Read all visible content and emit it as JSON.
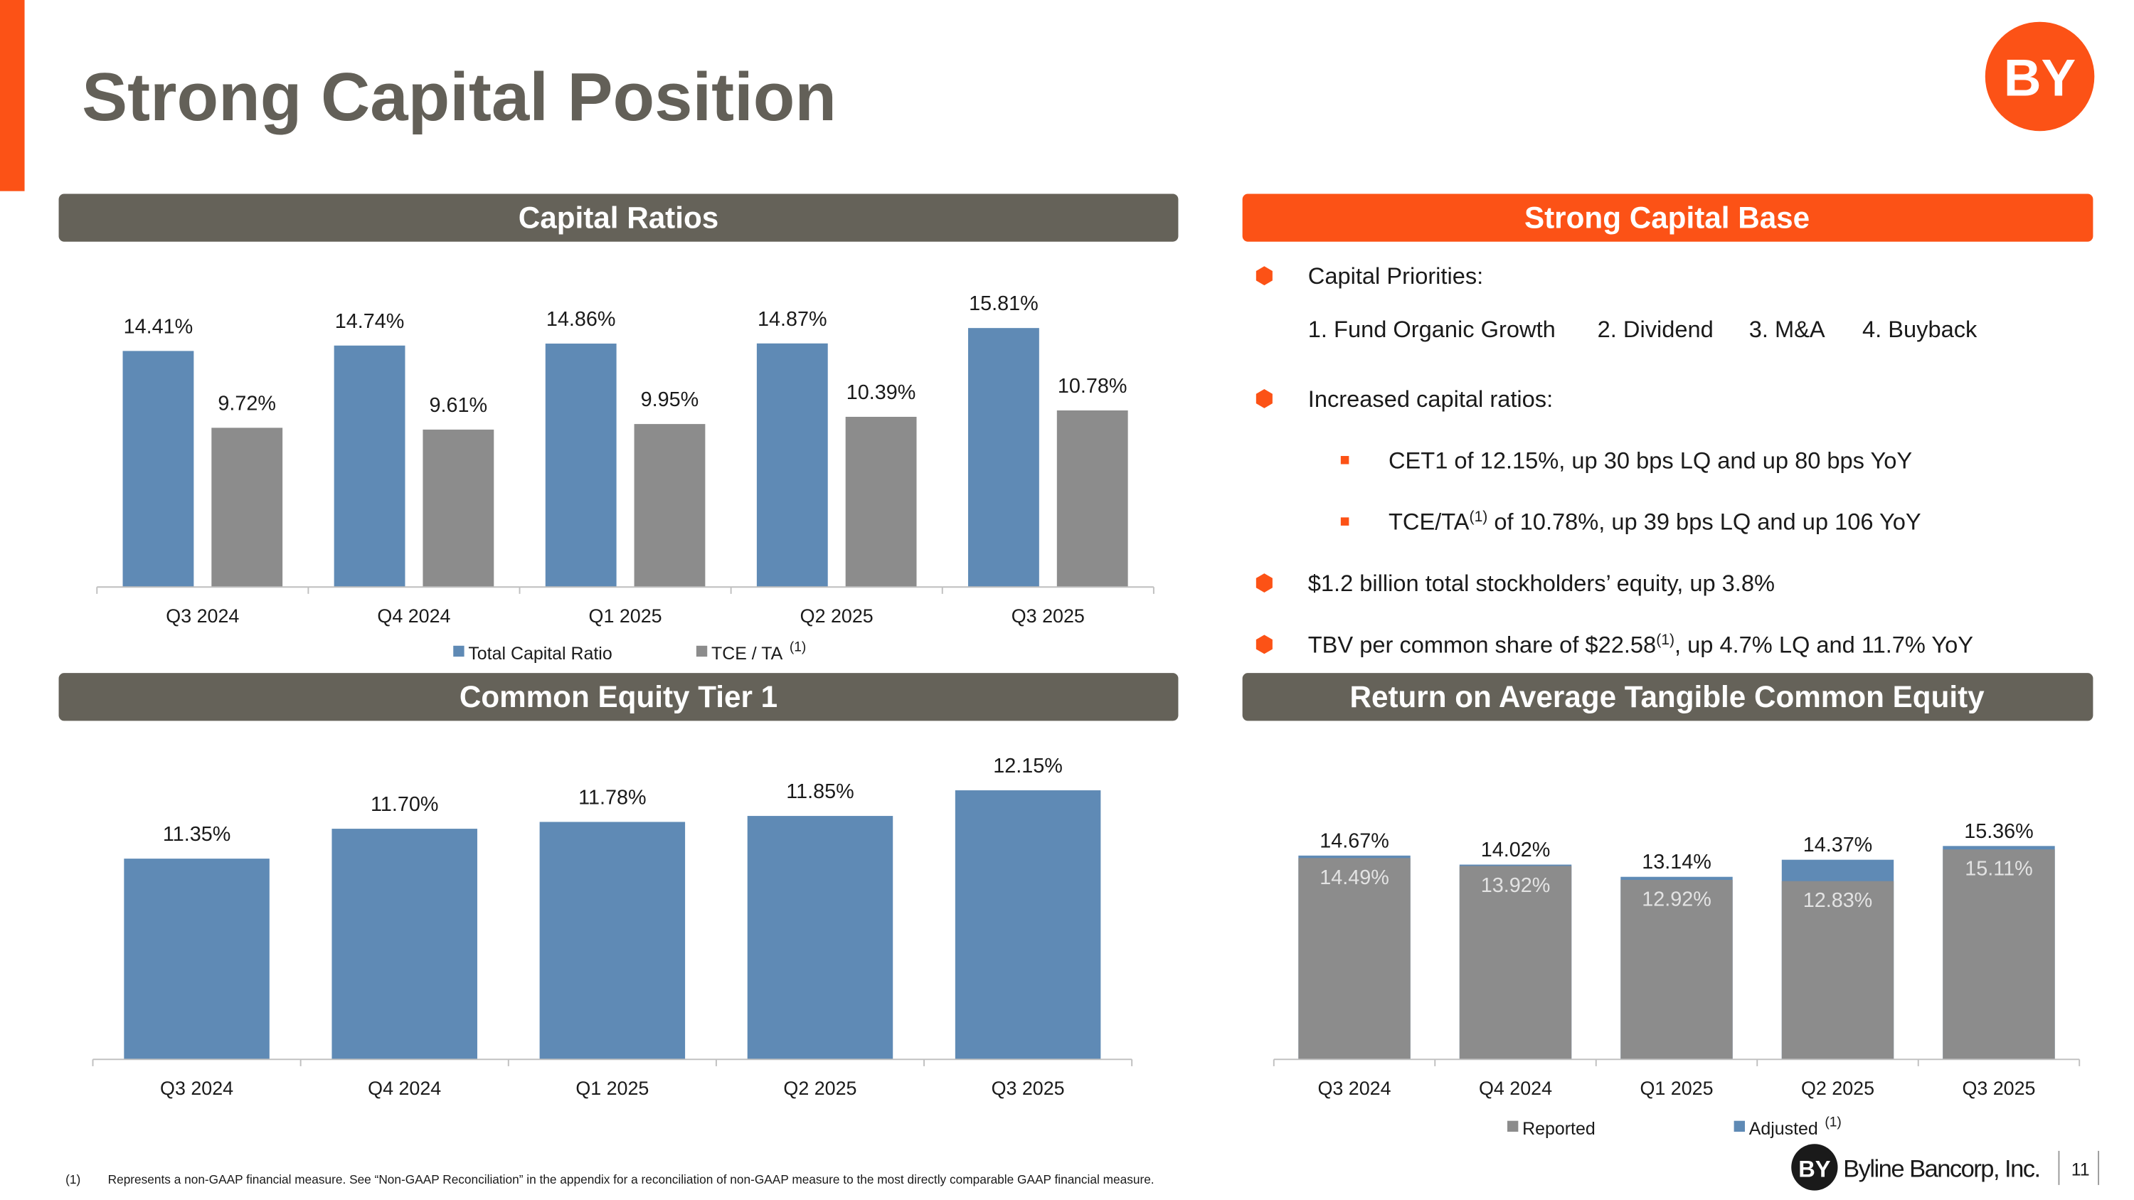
{
  "header": {
    "title": "Strong Capital Position",
    "logo": "BY"
  },
  "capital_base": {
    "title": "Strong Capital Base",
    "bullets": [
      {
        "text": "Capital Priorities:",
        "items": [
          "1. Fund Organic Growth",
          "2. Dividend",
          "3. M&A",
          "4. Buyback"
        ]
      },
      {
        "text": "Increased capital ratios:",
        "items": [
          "CET1 of 12.15%, up 30 bps LQ and up 80 bps YoY",
          [
            "TCE/TA",
            "(1)",
            " of 10.78%, up 39 bps LQ and up 106 YoY"
          ]
        ]
      },
      {
        "text": "$1.2 billion total stockholders’ equity, up 3.8%"
      },
      {
        "text": [
          "TBV per common share of $22.58",
          "(1)",
          ", up 4.7% LQ and 11.7% YoY"
        ]
      }
    ]
  },
  "footer": {
    "note_marker": "(1)",
    "note": "Represents a non-GAAP financial measure.  See “Non-GAAP Reconciliation” in the appendix for a reconciliation of non-GAAP measure to the most directly comparable GAAP financial measure.",
    "logo": "BY",
    "company": "Byline Bancorp, Inc.",
    "page": "11"
  },
  "chart_data": [
    {
      "type": "bar",
      "title": "Capital Ratios",
      "categories": [
        "Q3 2024",
        "Q4 2024",
        "Q1 2025",
        "Q2 2025",
        "Q3 2025"
      ],
      "ylim": [
        0,
        19
      ],
      "series": [
        {
          "name": "Total Capital Ratio",
          "color": "#5f8ab5",
          "values": [
            14.41,
            14.74,
            14.86,
            14.87,
            15.81
          ],
          "value_labels": [
            "14.41%",
            "14.74%",
            "14.86%",
            "14.87%",
            "15.81%"
          ]
        },
        {
          "name": "TCE / TA",
          "note": "(1)",
          "color": "#8c8c8c",
          "values": [
            9.72,
            9.61,
            9.95,
            10.39,
            10.78
          ],
          "value_labels": [
            "9.72%",
            "9.61%",
            "9.95%",
            "10.39%",
            "10.78%"
          ]
        }
      ]
    },
    {
      "type": "bar",
      "title": "Common Equity Tier 1",
      "categories": [
        "Q3 2024",
        "Q4 2024",
        "Q1 2025",
        "Q2 2025",
        "Q3 2025"
      ],
      "ylim": [
        9,
        12.5
      ],
      "series": [
        {
          "color": "#5f8ab5",
          "values": [
            11.35,
            11.7,
            11.78,
            11.85,
            12.15
          ],
          "value_labels": [
            "11.35%",
            "11.70%",
            "11.78%",
            "11.85%",
            "12.15%"
          ]
        }
      ]
    },
    {
      "type": "overlay",
      "title": "Return on Average Tangible Common Equity",
      "categories": [
        "Q3 2024",
        "Q4 2024",
        "Q1 2025",
        "Q2 2025",
        "Q3 2025"
      ],
      "ylim": [
        0,
        17
      ],
      "series": [
        {
          "name": "Reported",
          "color": "#8c8c8c",
          "label_color": "#e3e3e3",
          "values": [
            14.49,
            13.92,
            12.92,
            12.83,
            15.11
          ],
          "value_labels": [
            "14.49%",
            "13.92%",
            "12.92%",
            "12.83%",
            "15.11%"
          ]
        },
        {
          "name": "Adjusted",
          "note": "(1)",
          "color": "#5f8ab5",
          "values": [
            14.67,
            14.02,
            13.14,
            14.37,
            15.36
          ],
          "value_labels": [
            "14.67%",
            "14.02%",
            "13.14%",
            "14.37%",
            "15.36%"
          ]
        }
      ]
    }
  ]
}
